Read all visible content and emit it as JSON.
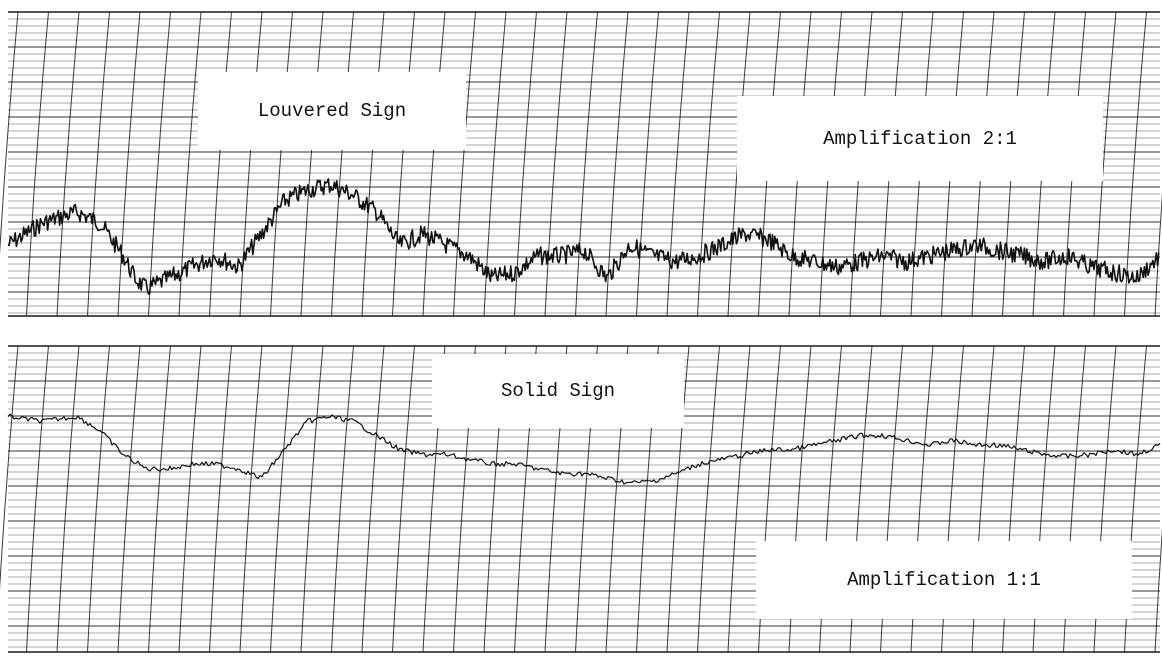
{
  "panels": [
    {
      "id": "louvered",
      "title": "Louvered Sign",
      "amplification": "Amplification  2:1",
      "trace_style": "dense",
      "chart_data": {
        "type": "line",
        "title": "",
        "xlabel": "",
        "ylabel": "",
        "x_range": [
          0,
          100
        ],
        "y_range": [
          -1,
          1
        ],
        "grid": true,
        "series": [
          {
            "x": [
              0,
              3,
              6,
              8,
              10,
              11,
              12,
              14,
              16,
              18,
              20,
              22,
              24,
              26,
              28,
              30,
              32,
              34,
              36,
              38,
              40,
              42,
              44,
              46,
              48,
              50,
              52,
              54,
              56,
              58,
              60,
              62,
              64,
              66,
              68,
              70,
              72,
              74,
              76,
              78,
              80,
              82,
              84,
              86,
              88,
              90,
              92,
              94,
              96,
              98,
              100
            ],
            "y": [
              0.0,
              0.2,
              0.3,
              0.2,
              -0.1,
              -0.3,
              -0.4,
              -0.3,
              -0.2,
              -0.1,
              -0.2,
              0.1,
              0.4,
              0.5,
              0.55,
              0.45,
              0.3,
              0.0,
              0.1,
              0.0,
              -0.1,
              -0.3,
              -0.25,
              -0.1,
              -0.1,
              -0.05,
              -0.3,
              0.0,
              -0.1,
              -0.15,
              -0.1,
              0.0,
              0.1,
              0.05,
              -0.1,
              -0.15,
              -0.2,
              -0.15,
              -0.1,
              -0.15,
              -0.1,
              -0.05,
              0.0,
              -0.05,
              -0.1,
              -0.15,
              -0.1,
              -0.2,
              -0.25,
              -0.3,
              -0.1
            ]
          }
        ]
      }
    },
    {
      "id": "solid",
      "title": "Solid Sign",
      "amplification": "Amplification  1:1",
      "trace_style": "smooth",
      "chart_data": {
        "type": "line",
        "title": "",
        "xlabel": "",
        "ylabel": "",
        "x_range": [
          0,
          100
        ],
        "y_range": [
          -1,
          1
        ],
        "grid": true,
        "series": [
          {
            "x": [
              0,
              3,
              6,
              8,
              10,
              12,
              14,
              16,
              18,
              20,
              22,
              24,
              26,
              28,
              30,
              32,
              34,
              36,
              38,
              40,
              42,
              44,
              46,
              48,
              50,
              52,
              54,
              56,
              58,
              60,
              62,
              64,
              66,
              68,
              70,
              72,
              74,
              76,
              78,
              80,
              82,
              84,
              86,
              88,
              90,
              92,
              94,
              96,
              98,
              100
            ],
            "y": [
              0.3,
              0.25,
              0.3,
              0.15,
              -0.1,
              -0.25,
              -0.25,
              -0.2,
              -0.2,
              -0.25,
              -0.35,
              -0.05,
              0.25,
              0.3,
              0.25,
              0.1,
              -0.05,
              -0.1,
              -0.1,
              -0.15,
              -0.2,
              -0.2,
              -0.25,
              -0.3,
              -0.3,
              -0.35,
              -0.4,
              -0.38,
              -0.3,
              -0.2,
              -0.15,
              -0.1,
              -0.05,
              -0.05,
              0.0,
              0.05,
              0.1,
              0.1,
              0.05,
              0.0,
              0.05,
              0.0,
              0.0,
              -0.05,
              -0.1,
              -0.12,
              -0.1,
              -0.05,
              -0.1,
              0.0
            ]
          }
        ]
      }
    }
  ],
  "colors": {
    "paper": "#ffffff",
    "grid": "#1a1a1a",
    "trace": "#111111"
  }
}
